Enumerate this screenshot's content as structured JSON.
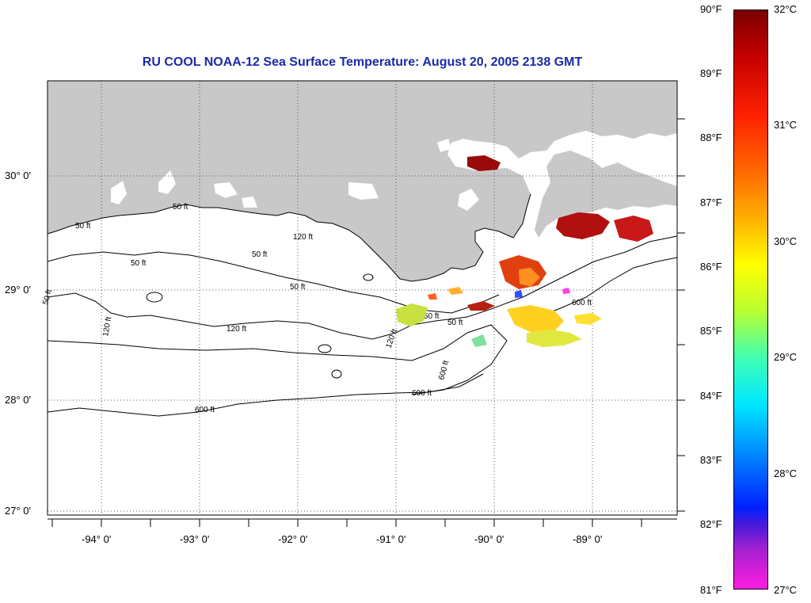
{
  "title": "RU COOL  NOAA-12  Sea Surface Temperature:  August 20, 2005 2138 GMT",
  "colors": {
    "land": "#c8c8c8",
    "water": "#ffffff",
    "title": "#1a2aa8",
    "contour": "#000000"
  },
  "lat_labels": [
    "30° 0'",
    "29° 0'",
    "28° 0'",
    "27° 0'"
  ],
  "lon_labels": [
    "-94° 0'",
    "-93° 0'",
    "-92° 0'",
    "-91° 0'",
    "-90° 0'",
    "-89° 0'"
  ],
  "contour_labels": [
    "50 ft",
    "50 ft",
    "50 ft",
    "50 ft",
    "50 ft",
    "50 ft",
    "50 ft",
    "50 ft",
    "120 ft",
    "120 ft",
    "120 ft",
    "120 ft",
    "600 ft",
    "600 ft",
    "600 ft",
    "600 ft"
  ],
  "colorbar": {
    "fahrenheit": [
      "90°F",
      "89°F",
      "88°F",
      "87°F",
      "86°F",
      "85°F",
      "84°F",
      "83°F",
      "82°F",
      "81°F"
    ],
    "celsius": [
      "32°C",
      "31°C",
      "30°C",
      "29°C",
      "28°C",
      "27°C"
    ]
  }
}
